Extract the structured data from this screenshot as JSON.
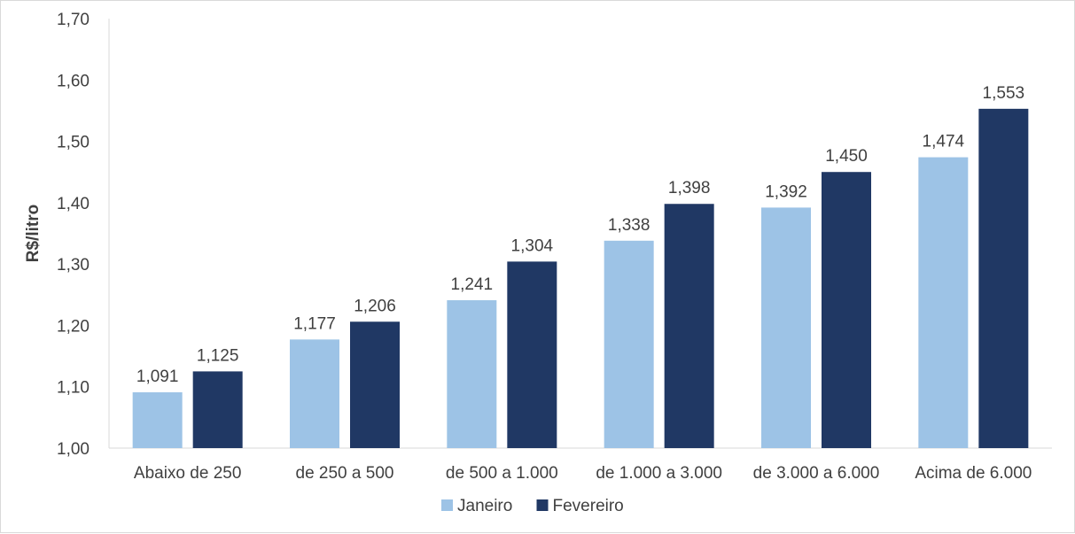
{
  "chart_data": {
    "type": "bar",
    "ylabel": "R$/litro",
    "xlabel": "",
    "ylim": [
      1.0,
      1.7
    ],
    "yticks": [
      1.0,
      1.1,
      1.2,
      1.3,
      1.4,
      1.5,
      1.6,
      1.7
    ],
    "ytick_labels": [
      "1,00",
      "1,10",
      "1,20",
      "1,30",
      "1,40",
      "1,50",
      "1,60",
      "1,70"
    ],
    "categories": [
      "Abaixo de 250",
      "de 250 a 500",
      "de 500 a 1.000",
      "de 1.000 a 3.000",
      "de 3.000 a 6.000",
      "Acima de 6.000"
    ],
    "series": [
      {
        "name": "Janeiro",
        "color": "#9dc3e6",
        "values": [
          1.091,
          1.177,
          1.241,
          1.338,
          1.392,
          1.474
        ],
        "labels": [
          "1,091",
          "1,177",
          "1,241",
          "1,338",
          "1,392",
          "1,474"
        ]
      },
      {
        "name": "Fevereiro",
        "color": "#203864",
        "values": [
          1.125,
          1.206,
          1.304,
          1.398,
          1.45,
          1.553
        ],
        "labels": [
          "1,125",
          "1,206",
          "1,304",
          "1,398",
          "1,450",
          "1,553"
        ]
      }
    ],
    "grid": false,
    "legend": "bottom"
  }
}
